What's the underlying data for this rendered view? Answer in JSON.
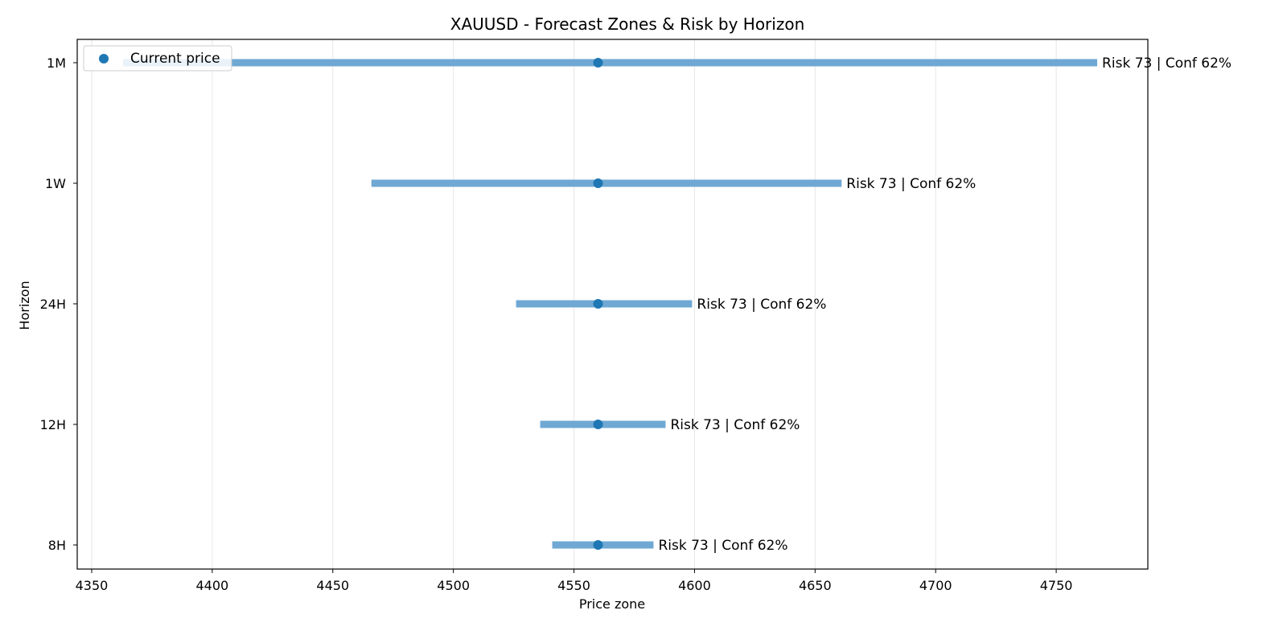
{
  "chart_data": {
    "type": "range",
    "title": "XAUUSD - Forecast Zones & Risk by Horizon",
    "xlabel": "Price zone",
    "ylabel": "Horizon",
    "xlim": [
      4344,
      4788
    ],
    "xticks": [
      4350,
      4400,
      4450,
      4500,
      4550,
      4600,
      4650,
      4700,
      4750
    ],
    "grid": "x",
    "legend": {
      "position": "top-left",
      "entries": [
        "Current price"
      ]
    },
    "colors": {
      "range": "#6fa8d3",
      "marker": "#1f77b4",
      "grid": "#e6e6e6"
    },
    "current_price": 4560,
    "horizons": [
      {
        "label": "8H",
        "low": 4541,
        "high": 4583,
        "annotation": "Risk 73 | Conf 62%"
      },
      {
        "label": "12H",
        "low": 4536,
        "high": 4588,
        "annotation": "Risk 73 | Conf 62%"
      },
      {
        "label": "24H",
        "low": 4526,
        "high": 4599,
        "annotation": "Risk 73 | Conf 62%"
      },
      {
        "label": "1W",
        "low": 4466,
        "high": 4661,
        "annotation": "Risk 73 | Conf 62%"
      },
      {
        "label": "1M",
        "low": 4363,
        "high": 4767,
        "annotation": "Risk 73 | Conf 62%"
      }
    ]
  }
}
